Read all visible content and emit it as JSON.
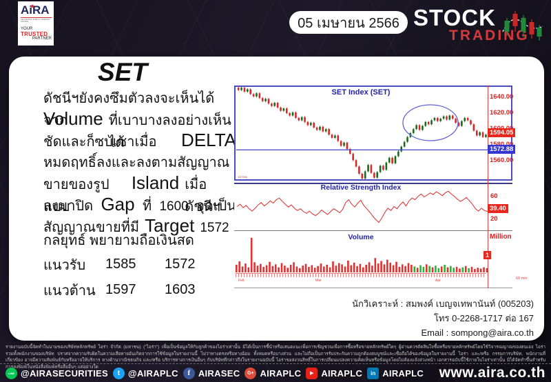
{
  "header": {
    "logo": {
      "brand": "AiRA",
      "sub": "SECURITIES PUBLIC COMPANY LIMITED",
      "tagline1": "YOUR",
      "tagline2": "TRUSTED",
      "tagline3": "PARTNER"
    },
    "date": "05 เมษายน 2566",
    "product": {
      "line1": "STOCK",
      "line2": "TRADING"
    }
  },
  "report": {
    "title": "SET",
    "paragraph": {
      "l1": "ดัชนีฯยังคงซึมตัวลงจะเห็นได้จาก",
      "l2_en": "Volume",
      "l2_th": "ที่เบาบางลงอย่างเห็นได้",
      "l3_th": "ชัดและก็ซบเซาเมื่อ",
      "l3_en": "DELTA",
      "l4": "หมดฤทธิ์ลงและลงตามสัญญาณ",
      "l5a": "ขายของรูปแบบ",
      "l5_en": "Island",
      "l5b": "เมื่อดัชนีฯ",
      "l6a": "ลงมาปิด",
      "l6_en": "Gap",
      "l6b": "ที่",
      "l6_num": "1600",
      "l6c": "จุดเป็น",
      "l7a": "สัญญาณขายที่มี",
      "l7_en": "Target",
      "l7_num": "1572"
    },
    "strategy": "กลยุทธ์ พยายามถือเงินสด",
    "levels": [
      {
        "label": "แนวรับ",
        "v1": "1585",
        "v2": "1572"
      },
      {
        "label": "แนวต้าน",
        "v1": "1597",
        "v2": "1603"
      }
    ],
    "analyst": {
      "line1": "นักวิเคราะห์ : สมพงค์ เบญจเทพานันท์ (005203)",
      "line2": "โทร 0-2268-1717 ต่อ 167",
      "line3": "Email : sompong@aira.co.th"
    }
  },
  "chart_labels": {
    "price_ticks": [
      "1640.00",
      "1620.00",
      "1600.00",
      "1580.00",
      "1560.00"
    ],
    "last_badge": "1594.05",
    "hline_badge": "1572.88",
    "rsi_ticks": [
      "60",
      "20"
    ],
    "rsi_badge": "39.40",
    "vol_badge": "1",
    "vol_unit": "Million",
    "months": [
      "Feb",
      "Mar",
      "Apr"
    ],
    "interval": "60 min",
    "watermark": "1d Day"
  },
  "chart_data": [
    {
      "type": "candlestick",
      "title": "SET Index (SET)",
      "ylabel": "Index",
      "ylim": [
        1536,
        1652
      ],
      "y_ticks": [
        1640,
        1620,
        1600,
        1580,
        1560
      ],
      "hline": 1572.88,
      "last": 1594.05,
      "annotation": "blue ellipse circling recent topping candles",
      "close": [
        1648,
        1651,
        1646,
        1649,
        1643,
        1640,
        1644,
        1638,
        1634,
        1637,
        1631,
        1628,
        1632,
        1626,
        1622,
        1625,
        1619,
        1616,
        1620,
        1613,
        1610,
        1614,
        1608,
        1604,
        1607,
        1601,
        1598,
        1602,
        1596,
        1599,
        1592,
        1588,
        1591,
        1584,
        1578,
        1582,
        1574,
        1568,
        1560,
        1552,
        1543,
        1537,
        1546,
        1554,
        1544,
        1538,
        1545,
        1553,
        1548,
        1557,
        1563,
        1556,
        1565,
        1571,
        1577,
        1583,
        1589,
        1594,
        1599,
        1604,
        1598,
        1603,
        1608,
        1605,
        1610,
        1613,
        1609,
        1612,
        1615,
        1611,
        1616,
        1612,
        1607,
        1603,
        1609,
        1613,
        1610,
        1605,
        1597,
        1591,
        1595,
        1589,
        1592,
        1594.05
      ]
    },
    {
      "type": "line",
      "title": "Relative Strength Index",
      "ylim": [
        5,
        85
      ],
      "y_ticks": [
        60,
        20
      ],
      "last": 39.4,
      "values": [
        48,
        52,
        46,
        50,
        44,
        40,
        45,
        51,
        55,
        49,
        53,
        58,
        54,
        60,
        63,
        57,
        52,
        47,
        51,
        45,
        41,
        44,
        39,
        36,
        40,
        35,
        32,
        36,
        42,
        38,
        34,
        39,
        44,
        41,
        37,
        43,
        55,
        60,
        52,
        47,
        54,
        59,
        50,
        44,
        38,
        31,
        25,
        20,
        28,
        38,
        45,
        41,
        48,
        44,
        51,
        56,
        49,
        58,
        63,
        60,
        66,
        70,
        65,
        68,
        72,
        69,
        74,
        71,
        67,
        72,
        75,
        70,
        66,
        61,
        57,
        60,
        64,
        58,
        52,
        44,
        40,
        45,
        41,
        39.4
      ]
    },
    {
      "type": "bar",
      "title": "Volume",
      "unit": "Million",
      "ylim": [
        0,
        8.5
      ],
      "last": 1,
      "x_months": [
        "Feb",
        "Mar",
        "Apr"
      ],
      "interval": "60 min",
      "values": [
        1.8,
        2.6,
        1.4,
        2.1,
        1.2,
        8.2,
        2.4,
        1.6,
        2.0,
        1.3,
        1.7,
        2.5,
        1.5,
        1.9,
        1.2,
        2.2,
        1.6,
        1.1,
        1.8,
        2.4,
        1.4,
        1.0,
        1.6,
        2.0,
        1.3,
        1.7,
        1.1,
        1.5,
        2.1,
        1.4,
        1.8,
        1.2,
        2.6,
        1.6,
        2.2,
        1.9,
        1.4,
        2.8,
        1.7,
        2.3,
        1.5,
        2.0,
        1.2,
        1.8,
        2.4,
        1.6,
        3.4,
        2.1,
        2.7,
        1.9,
        3.0,
        2.3,
        1.7,
        2.5,
        1.3,
        1.9,
        1.5,
        2.2,
        1.8,
        1.4,
        1.1,
        1.7,
        1.3,
        1.9,
        1.5,
        1.2,
        1.6,
        1.0,
        1.4,
        1.8,
        1.2,
        1.5,
        1.1,
        1.3,
        0.9,
        1.2,
        1.5,
        1.0,
        1.3,
        0.8,
        1.1,
        0.9,
        1.2,
        1.0
      ],
      "green_indices": [
        59,
        61,
        62,
        64,
        66,
        67,
        69,
        71,
        72,
        75,
        77
      ]
    }
  ],
  "disclaimer": {
    "line1": "รายงานฉบับนี้จัดทำในนามของบริษัทหลักทรัพย์ ไอร่า จำกัด (มหาชน) (\"ไอร่า\") เพื่อเป็นข้อมูลให้กับลูกค้าของไอร่าเท่านั้น มิได้เป็นการชี้นำหรือเสนอแนะเพื่อการเชิญชวนเพื่อการซื้อหรือขายหลักทรัพย์ใดๆ ผู้อ่านควรตัดสินใจซื้อหรือขายหลักทรัพย์โดยใช้วิจารณญาณของตนเอง ไอร่า รวมทั้งพนักงานของบริษัท",
    "line2": "ปราศจากความรับผิดในความเสียหายอันเกิดจากการใช้ข้อมูลในรายงานนี้ ไม่ว่าทางตรงหรือทางอ้อม ทั้งหมดหรือบางส่วน และไม่ถือเป็นการรับประกันความถูกต้องสมบูรณ์และเชื่อถือได้ของข้อมูลในรายงานนี้ ไอร่า และ/หรือ กรรมการบริษัท, พนักงานที่เกี่ยวข้อง อาจมีความสัมพันธ์กับหรืออาจให้บริการ",
    "line3": "ทางด้านวาณิชธนกิจ และ/หรือ บริการทางการเงินอื่นๆ กับบริษัทที่กล่าวถึงในรายงานฉบับนี้ ไอร่าขอสงวนสิทธิ์ในการเปลี่ยนแปลงความคิดเห็นหรือข้อมูลโดยไม่ต้องแจ้งล่วงหน้า เอกสารฉบับนี้ใช้ภายในไอร่าเท่านั้น มิได้จัดทำขึ้นสำหรับการลงพิมพ์ในหนังสือพิมพ์หรือสื่ออื่นๆ แต่อย่างใด"
  },
  "footer": {
    "social": [
      {
        "network": "line",
        "handle": "@AIRASECURITIES"
      },
      {
        "network": "twitter",
        "handle": "@AIRAPLC"
      },
      {
        "network": "facebook",
        "handle": "AIRASEC"
      },
      {
        "network": "googleplus",
        "handle": "AIRAPLC"
      },
      {
        "network": "youtube",
        "handle": "AIRAPLC"
      },
      {
        "network": "linkedin",
        "handle": "AIRAPLC"
      }
    ],
    "website": "www.aira.co.th"
  },
  "colors": {
    "brand_red": "#e0282a",
    "brand_navy": "#20265c",
    "chart_title_blue": "#2222a6",
    "candle_up": "#17691c",
    "candle_down": "#d42828",
    "badge_red": "#e8281e",
    "badge_blue": "#3535cf",
    "rsi_line": "#e02a2a",
    "volume_green": "#25b830"
  }
}
